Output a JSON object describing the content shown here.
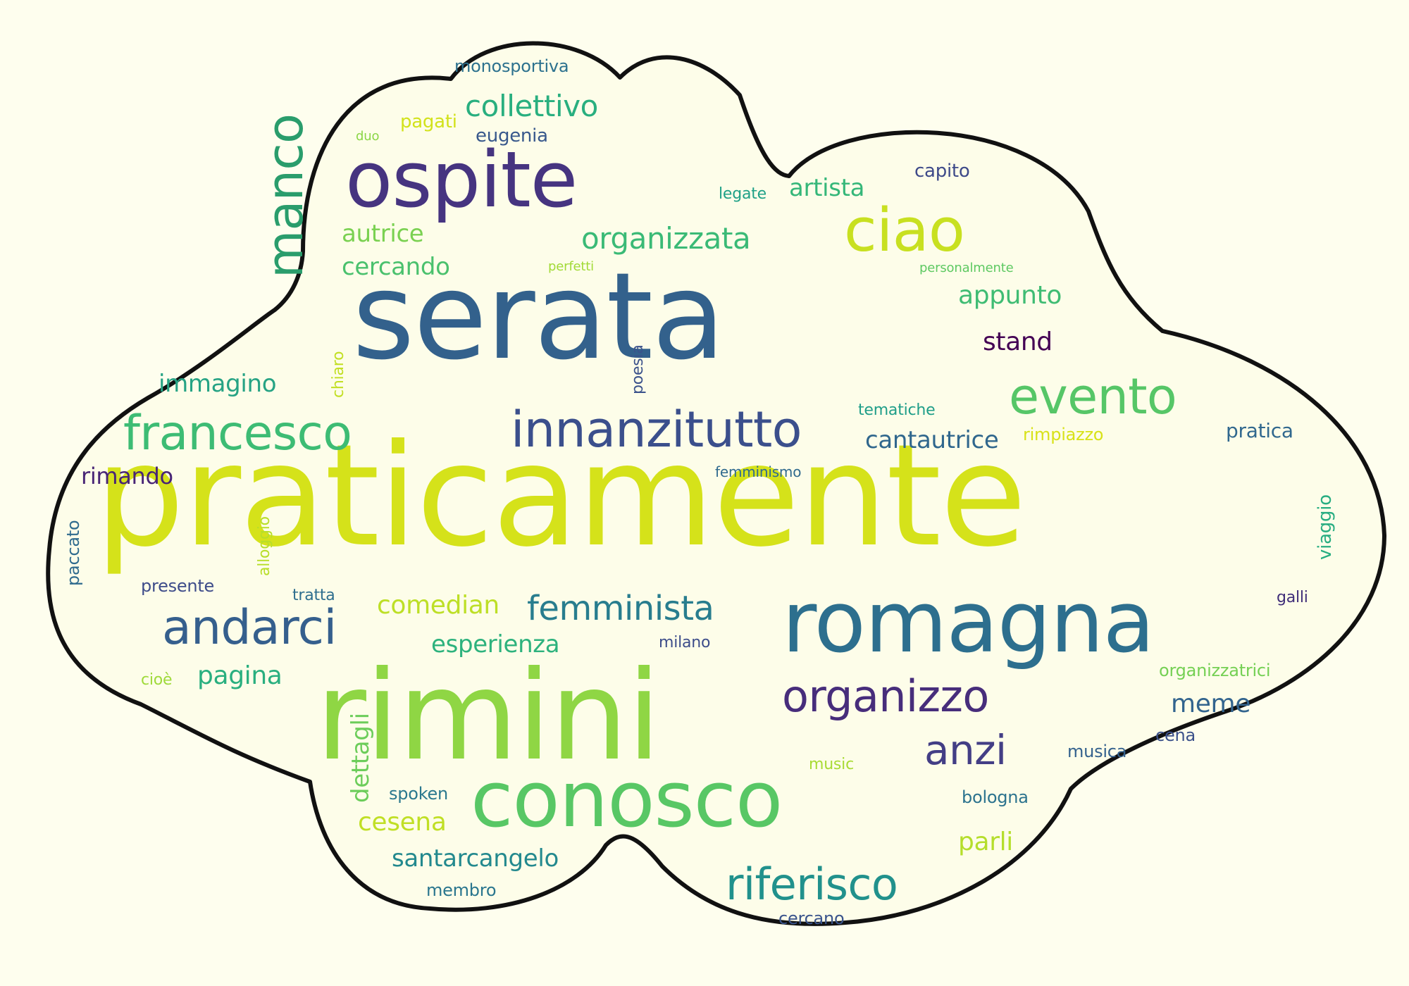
{
  "palette": {
    "background": "#fefeee",
    "outline": "#111111",
    "cloud_fill": "#fdfde9"
  },
  "words": [
    {
      "text": "praticamente",
      "color": "#d5e21a"
    },
    {
      "text": "serata",
      "color": "#33618c"
    },
    {
      "text": "rimini",
      "color": "#8fd644"
    },
    {
      "text": "romagna",
      "color": "#2d6f8e"
    },
    {
      "text": "ospite",
      "color": "#463480"
    },
    {
      "text": "conosco",
      "color": "#58c765"
    },
    {
      "text": "ciao",
      "color": "#c8e020"
    },
    {
      "text": "manco",
      "color": "#2a9d6c"
    },
    {
      "text": "innanzitutto",
      "color": "#3b4f8c"
    },
    {
      "text": "evento",
      "color": "#56c667"
    },
    {
      "text": "francesco",
      "color": "#3dbc74"
    },
    {
      "text": "andarci",
      "color": "#355f8d"
    },
    {
      "text": "organizzo",
      "color": "#472d7b"
    },
    {
      "text": "riferisco",
      "color": "#21918c"
    },
    {
      "text": "anzi",
      "color": "#433e85"
    },
    {
      "text": "femminista",
      "color": "#287d8e"
    },
    {
      "text": "organizzata",
      "color": "#3aba76"
    },
    {
      "text": "collettivo",
      "color": "#29af7f"
    },
    {
      "text": "artista",
      "color": "#35b779"
    },
    {
      "text": "appunto",
      "color": "#3fbc73"
    },
    {
      "text": "stand",
      "color": "#440154"
    },
    {
      "text": "cantautrice",
      "color": "#30678d"
    },
    {
      "text": "immagino",
      "color": "#26a384"
    },
    {
      "text": "comedian",
      "color": "#bddf26"
    },
    {
      "text": "esperienza",
      "color": "#2db27d"
    },
    {
      "text": "pagina",
      "color": "#29af7f"
    },
    {
      "text": "dettagli",
      "color": "#6ccd5a"
    },
    {
      "text": "cesena",
      "color": "#c0df25"
    },
    {
      "text": "santarcangelo",
      "color": "#23898e"
    },
    {
      "text": "parli",
      "color": "#b5de2b"
    },
    {
      "text": "meme",
      "color": "#32648e"
    },
    {
      "text": "autrice",
      "color": "#7ad151"
    },
    {
      "text": "cercando",
      "color": "#4ac16d"
    },
    {
      "text": "rimando",
      "color": "#482576"
    },
    {
      "text": "pratica",
      "color": "#31688e"
    },
    {
      "text": "viaggio",
      "color": "#27ad81"
    },
    {
      "text": "eugenia",
      "color": "#38588c"
    },
    {
      "text": "pagati",
      "color": "#d2e21b"
    },
    {
      "text": "monosportiva",
      "color": "#2c718e"
    },
    {
      "text": "duo",
      "color": "#8bd646"
    },
    {
      "text": "capito",
      "color": "#3e4a89"
    },
    {
      "text": "legate",
      "color": "#1fa187"
    },
    {
      "text": "perfetti",
      "color": "#a2da37"
    },
    {
      "text": "personalmente",
      "color": "#5ec962"
    },
    {
      "text": "poesia",
      "color": "#3b528b"
    },
    {
      "text": "chiaro",
      "color": "#c2df23"
    },
    {
      "text": "tematiche",
      "color": "#1f9e89"
    },
    {
      "text": "rimpiazzo",
      "color": "#d8e219"
    },
    {
      "text": "femminismo",
      "color": "#306a8e"
    },
    {
      "text": "paccato",
      "color": "#2f6b8e"
    },
    {
      "text": "alloggio",
      "color": "#b8de29"
    },
    {
      "text": "presente",
      "color": "#3e4c8a"
    },
    {
      "text": "tratta",
      "color": "#2e6e8e"
    },
    {
      "text": "milano",
      "color": "#3d4d8a"
    },
    {
      "text": "galli",
      "color": "#3f2d79"
    },
    {
      "text": "cioè",
      "color": "#9fda3a"
    },
    {
      "text": "organizzatrici",
      "color": "#75d054"
    },
    {
      "text": "cena",
      "color": "#3b518b"
    },
    {
      "text": "musica",
      "color": "#34618d"
    },
    {
      "text": "music",
      "color": "#a8db34"
    },
    {
      "text": "spoken",
      "color": "#2a788e"
    },
    {
      "text": "bologna",
      "color": "#2c738e"
    },
    {
      "text": "membro",
      "color": "#2a768e"
    },
    {
      "text": "cercano",
      "color": "#3a548c"
    }
  ]
}
